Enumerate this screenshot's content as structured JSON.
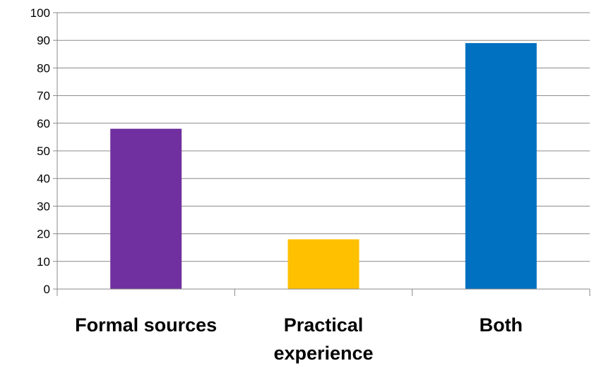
{
  "chart_data": {
    "type": "bar",
    "title": "",
    "xlabel": "",
    "ylabel": "",
    "categories": [
      [
        "Formal sources"
      ],
      [
        "Practical",
        "experience"
      ],
      [
        "Both"
      ]
    ],
    "values": [
      58,
      18,
      89
    ],
    "colors": [
      "#7030A0",
      "#FFC000",
      "#0070C0"
    ],
    "ylim": [
      0,
      100
    ],
    "yticks": [
      0,
      10,
      20,
      30,
      40,
      50,
      60,
      70,
      80,
      90,
      100
    ],
    "grid": true,
    "legend": "none"
  }
}
